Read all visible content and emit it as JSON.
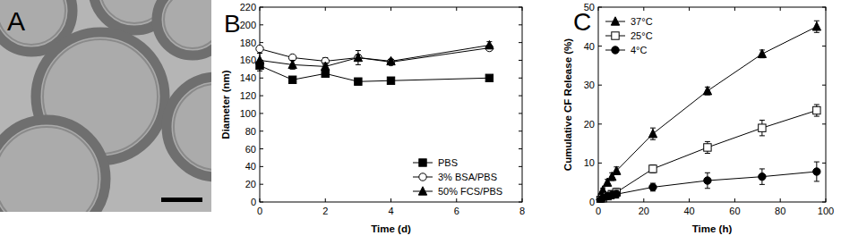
{
  "chart_data": [
    {
      "type": "image",
      "title": "A"
    },
    {
      "type": "line",
      "title": "B",
      "x_label": "Time (d)",
      "y_label": "Diameter (nm)",
      "x": [
        0,
        1,
        2,
        3,
        4,
        7
      ],
      "xlim": [
        0,
        8
      ],
      "xticks": [
        0,
        2,
        4,
        6,
        8
      ],
      "ylim": [
        0,
        220
      ],
      "yticks": [
        0,
        20,
        40,
        60,
        80,
        100,
        120,
        140,
        160,
        180,
        200,
        220
      ],
      "legend": "lower right",
      "series": [
        {
          "name": "PBS",
          "color": "#000000",
          "marker": "square",
          "values": [
            154,
            138,
            145,
            136,
            137,
            140
          ],
          "errors": [
            6,
            1,
            2,
            1,
            1,
            1
          ]
        },
        {
          "name": "3% BSA/PBS",
          "color": "#000000",
          "marker": "open-circle",
          "values": [
            173,
            163,
            159,
            163,
            158,
            174
          ],
          "errors": [
            2,
            1,
            4,
            8,
            2,
            3
          ]
        },
        {
          "name": "50% FCS/PBS",
          "color": "#000000",
          "marker": "triangle",
          "values": [
            160,
            155,
            153,
            163,
            159,
            177
          ],
          "errors": [
            8,
            5,
            4,
            3,
            2,
            4
          ]
        }
      ]
    },
    {
      "type": "line",
      "title": "C",
      "x_label": "Time (h)",
      "y_label": "Cumulative CF Release (%)",
      "x": [
        1,
        2,
        4,
        6,
        8,
        24,
        48,
        72,
        96
      ],
      "xlim": [
        0,
        100
      ],
      "xticks": [
        0,
        20,
        40,
        60,
        80,
        100
      ],
      "ylim": [
        0,
        50
      ],
      "yticks": [
        0,
        10,
        20,
        30,
        40,
        50
      ],
      "legend": "upper left",
      "series": [
        {
          "name": "37°C",
          "color": "#000000",
          "marker": "triangle",
          "values": [
            1.5,
            3,
            5,
            6.5,
            8,
            17.5,
            28.5,
            38,
            45
          ],
          "errors": [
            0.5,
            0.5,
            0.8,
            1,
            1,
            1.5,
            1,
            1,
            1.5
          ]
        },
        {
          "name": "25°C",
          "color": "#000000",
          "marker": "open-square",
          "values": [
            0.5,
            1,
            1.5,
            2,
            2.5,
            8.5,
            14,
            19,
            23.5
          ],
          "errors": [
            0.3,
            0.5,
            0.5,
            0.8,
            1,
            1,
            1.5,
            2,
            1.5
          ]
        },
        {
          "name": "4°C",
          "color": "#000000",
          "marker": "circle",
          "values": [
            0.5,
            1,
            1.5,
            1.8,
            2,
            3.8,
            5.5,
            6.5,
            7.8
          ],
          "errors": [
            0.3,
            0.5,
            0.5,
            1,
            1,
            1,
            2,
            2,
            2.5
          ]
        }
      ]
    }
  ]
}
